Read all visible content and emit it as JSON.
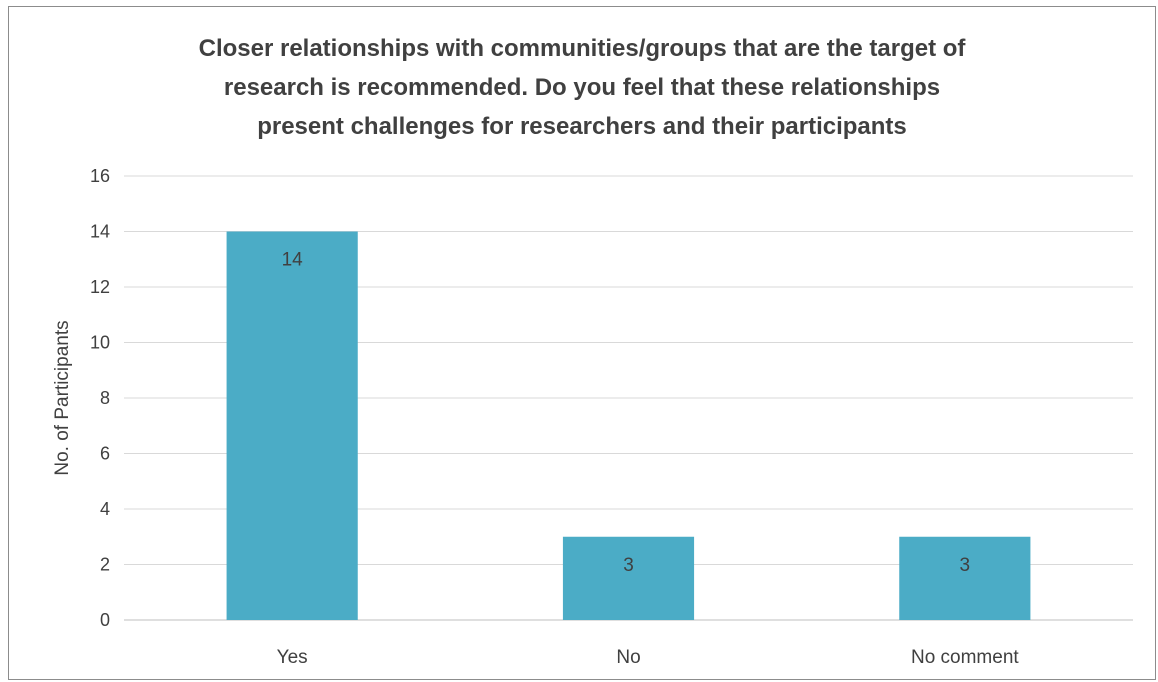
{
  "chart_data": {
    "type": "bar",
    "title_lines": [
      "Closer relationships with communities/groups that are the target of",
      "research is recommended.  Do you feel that these relationships",
      "present challenges for researchers and their participants"
    ],
    "categories": [
      "Yes",
      "No",
      "No comment"
    ],
    "values": [
      14,
      3,
      3
    ],
    "data_labels": [
      "14",
      "3",
      "3"
    ],
    "xlabel": "",
    "ylabel": "No. of Participants",
    "ylim": [
      0,
      16
    ],
    "yticks": [
      "0",
      "2",
      "4",
      "6",
      "8",
      "10",
      "12",
      "14",
      "16"
    ],
    "grid": true,
    "legend": "none",
    "bar_color": "#4bacc6"
  }
}
